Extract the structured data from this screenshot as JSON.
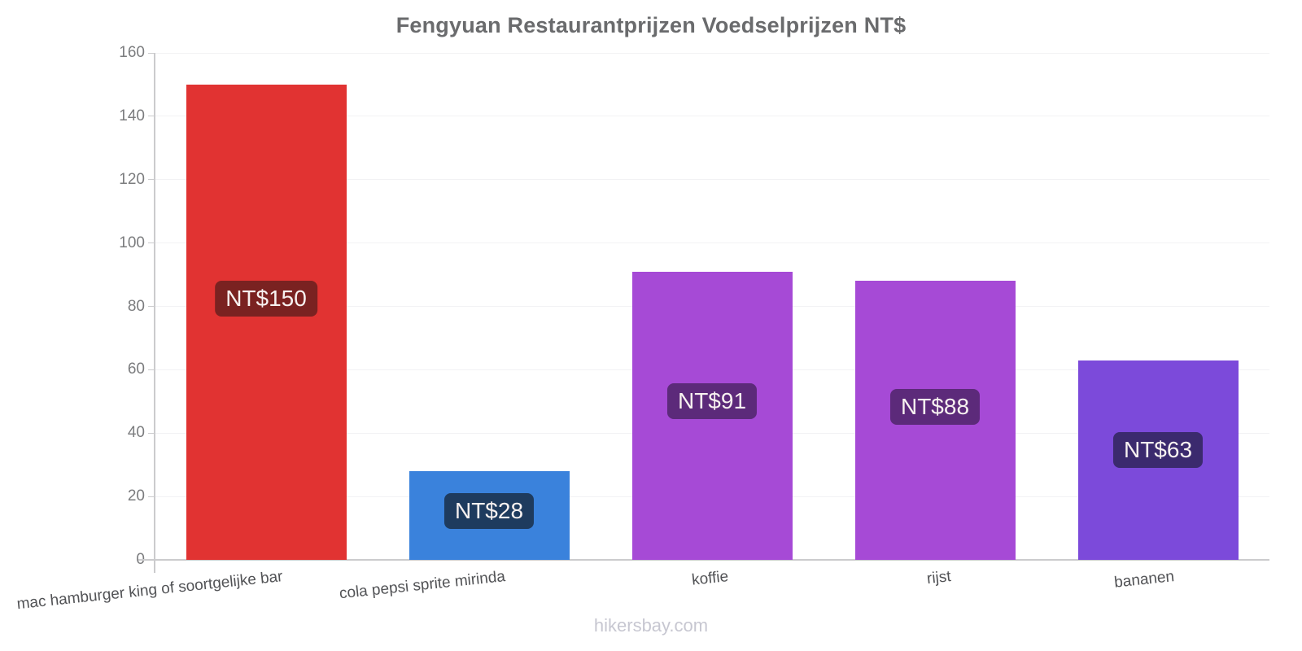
{
  "title": "Fengyuan Restaurantprijzen Voedselprijzen NT$",
  "watermark": "hikersbay.com",
  "chart_data": {
    "type": "bar",
    "title": "Fengyuan Restaurantprijzen Voedselprijzen NT$",
    "categories": [
      "mac hamburger king of soortgelijke bar",
      "cola pepsi sprite mirinda",
      "koffie",
      "rijst",
      "bananen"
    ],
    "values": [
      150,
      28,
      91,
      88,
      63
    ],
    "value_labels": [
      "NT$150",
      "NT$28",
      "NT$91",
      "NT$88",
      "NT$63"
    ],
    "bar_colors": [
      "#e13332",
      "#3a82dc",
      "#a64ad6",
      "#a64ad6",
      "#7c4ada"
    ],
    "badge_colors": [
      "#7a2221",
      "#1e3b5e",
      "#5c2a7a",
      "#5c2a7a",
      "#3b2a6e"
    ],
    "currency": "NT$",
    "xlabel": "",
    "ylabel": "",
    "ylim": [
      0,
      160
    ],
    "yticks": [
      0,
      20,
      40,
      60,
      80,
      100,
      120,
      140,
      160
    ],
    "grid": true,
    "legend_position": "none"
  },
  "colors": {
    "title_text": "#6a6b6d",
    "axis_line": "#cbcbcd",
    "gridline": "#f2f2f4",
    "y_tick_text": "#7b7c7e",
    "x_tick_text": "#525356",
    "badge_text": "#f7f1f0",
    "watermark_text": "#c7c7d1",
    "background": "#ffffff"
  }
}
